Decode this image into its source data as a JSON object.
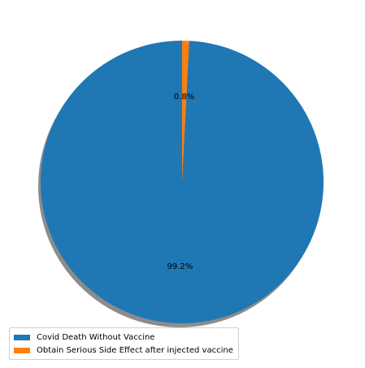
{
  "chart_data": {
    "type": "pie",
    "categories": [
      "Covid Death Without Vaccine",
      "Obtain Serious Side Effect after injected vaccine"
    ],
    "values": [
      99.2,
      0.8
    ],
    "percent_labels": [
      "99.2%",
      "0.8%"
    ],
    "colors": [
      "#1f77b4",
      "#ff7f0e"
    ],
    "title": "",
    "shadow": true,
    "legend_position": "lower-left",
    "start_angle": 90
  }
}
